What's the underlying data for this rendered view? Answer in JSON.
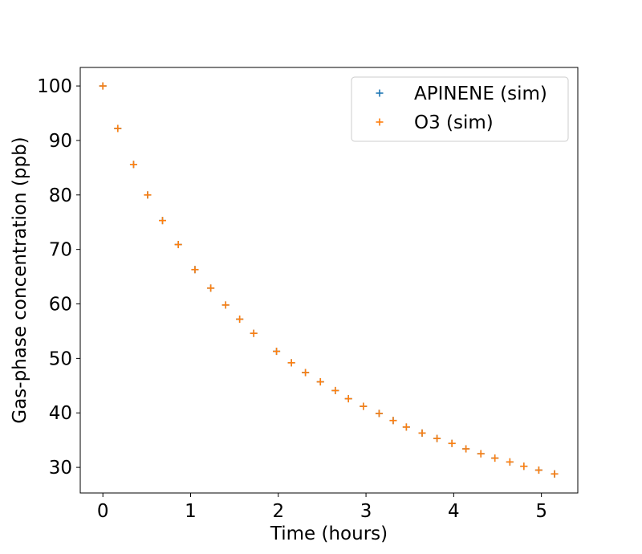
{
  "chart_data": {
    "type": "scatter",
    "title": "",
    "xlabel": "Time (hours)",
    "ylabel": "Gas-phase concentration (ppb)",
    "xlim": [
      -0.258,
      5.415
    ],
    "ylim": [
      25.3,
      103.4
    ],
    "xticks": [
      0,
      1,
      2,
      3,
      4,
      5
    ],
    "yticks": [
      30,
      40,
      50,
      60,
      70,
      80,
      90,
      100
    ],
    "grid": false,
    "legend_position": "top-right",
    "x": [
      0,
      0.17,
      0.35,
      0.51,
      0.68,
      0.86,
      1.05,
      1.23,
      1.4,
      1.56,
      1.72,
      1.98,
      2.15,
      2.31,
      2.48,
      2.65,
      2.8,
      2.97,
      3.15,
      3.31,
      3.46,
      3.64,
      3.81,
      3.98,
      4.14,
      4.31,
      4.47,
      4.64,
      4.8,
      4.97,
      5.15
    ],
    "series": [
      {
        "name": "APINENE (sim)",
        "color": "#1f77b4",
        "marker": "plus",
        "values": [
          100,
          92.2,
          85.6,
          80.0,
          75.3,
          70.9,
          66.3,
          62.9,
          59.8,
          57.2,
          54.6,
          51.3,
          49.2,
          47.4,
          45.7,
          44.1,
          42.6,
          41.2,
          39.9,
          38.6,
          37.4,
          36.3,
          35.3,
          34.4,
          33.4,
          32.5,
          31.7,
          31.0,
          30.2,
          29.5,
          28.8
        ]
      },
      {
        "name": "O3 (sim)",
        "color": "#ff7f0e",
        "marker": "plus",
        "values": [
          100,
          92.2,
          85.6,
          80.0,
          75.3,
          70.9,
          66.3,
          62.9,
          59.8,
          57.2,
          54.6,
          51.3,
          49.2,
          47.4,
          45.7,
          44.1,
          42.6,
          41.2,
          39.9,
          38.6,
          37.4,
          36.3,
          35.3,
          34.4,
          33.4,
          32.5,
          31.7,
          31.0,
          30.2,
          29.5,
          28.8
        ]
      }
    ]
  }
}
